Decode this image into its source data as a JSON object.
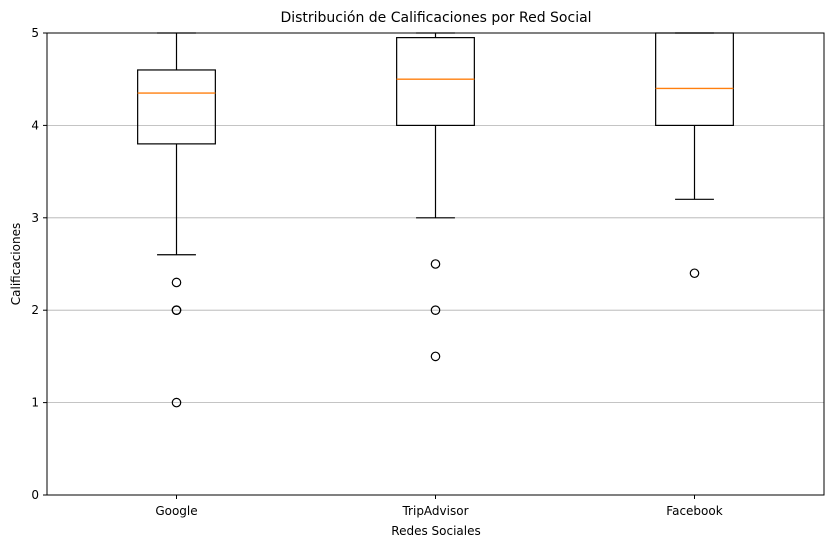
{
  "chart_data": {
    "type": "box",
    "title": "Distribución de Calificaciones por Red Social",
    "xlabel": "Redes Sociales",
    "ylabel": "Calificaciones",
    "ylim": [
      0,
      5
    ],
    "yticks": [
      "0",
      "1",
      "2",
      "3",
      "4",
      "5"
    ],
    "grid": "horizontal",
    "categories": [
      "Google",
      "TripAdvisor",
      "Facebook"
    ],
    "boxes": [
      {
        "category": "Google",
        "whisker_low": 2.6,
        "q1": 3.8,
        "median": 4.35,
        "q3": 4.6,
        "whisker_high": 5.0,
        "outliers": [
          2.3,
          2.0,
          2.0,
          1.0
        ]
      },
      {
        "category": "TripAdvisor",
        "whisker_low": 3.0,
        "q1": 4.0,
        "median": 4.5,
        "q3": 4.95,
        "whisker_high": 5.0,
        "outliers": [
          2.5,
          2.0,
          1.5
        ]
      },
      {
        "category": "Facebook",
        "whisker_low": 3.2,
        "q1": 4.0,
        "median": 4.4,
        "q3": 5.0,
        "whisker_high": 5.0,
        "outliers": [
          2.4
        ]
      }
    ],
    "colors": {
      "box": "#000000",
      "median": "#ff7f0e",
      "grid": "#b0b0b0"
    }
  }
}
